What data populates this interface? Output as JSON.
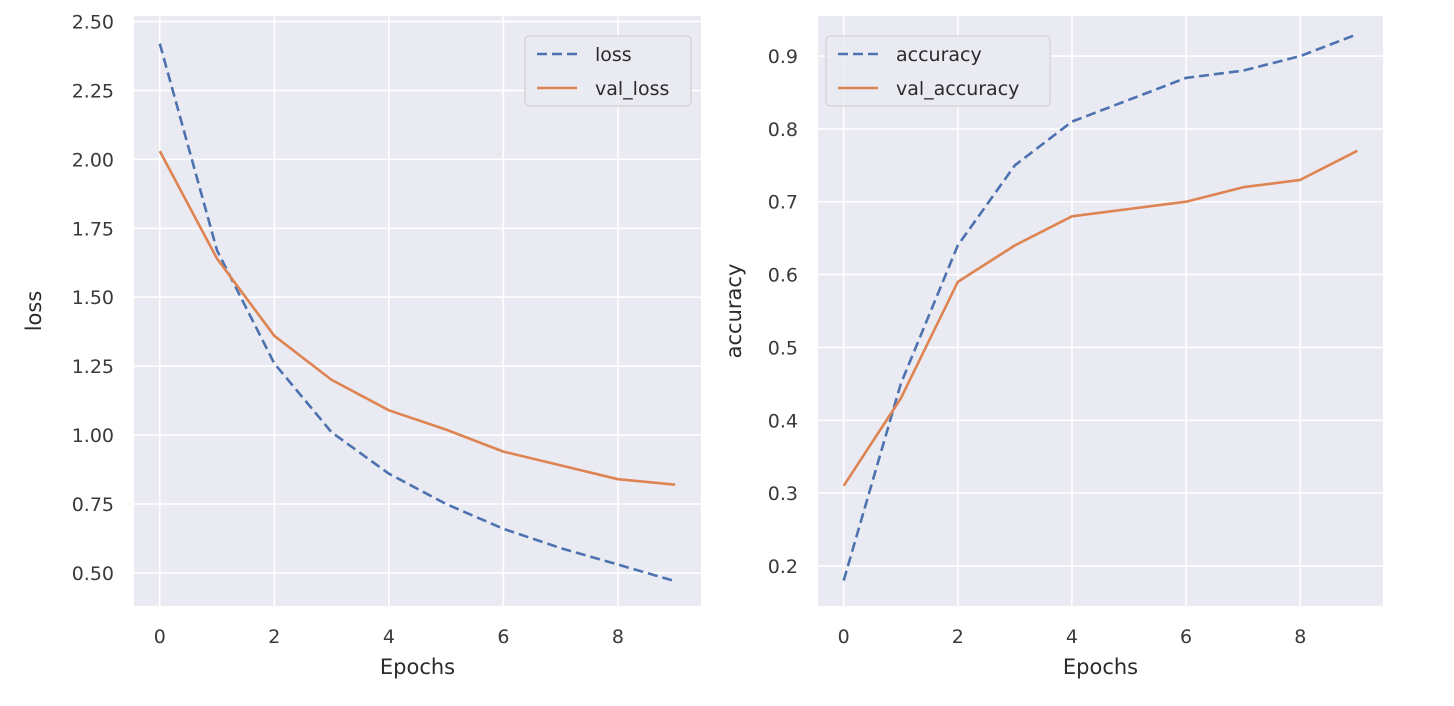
{
  "chart_data": [
    {
      "type": "line",
      "xlabel": "Epochs",
      "ylabel": "loss",
      "xlim": [
        -0.45,
        9.45
      ],
      "ylim": [
        0.38,
        2.52
      ],
      "xticks": [
        0,
        2,
        4,
        6,
        8
      ],
      "xtick_labels": [
        "0",
        "2",
        "4",
        "6",
        "8"
      ],
      "yticks": [
        0.5,
        0.75,
        1.0,
        1.25,
        1.5,
        1.75,
        2.0,
        2.25,
        2.5
      ],
      "ytick_labels": [
        "0.50",
        "0.75",
        "1.00",
        "1.25",
        "1.50",
        "1.75",
        "2.00",
        "2.25",
        "2.50"
      ],
      "grid": true,
      "legend_position": "top-right",
      "x": [
        0,
        1,
        2,
        3,
        4,
        5,
        6,
        7,
        8,
        9
      ],
      "series": [
        {
          "name": "loss",
          "style": "dashed",
          "color": "#4c72b0",
          "values": [
            2.42,
            1.67,
            1.26,
            1.01,
            0.86,
            0.75,
            0.66,
            0.59,
            0.53,
            0.47
          ]
        },
        {
          "name": "val_loss",
          "style": "solid",
          "color": "#dd8452",
          "values": [
            2.03,
            1.64,
            1.36,
            1.2,
            1.09,
            1.02,
            0.94,
            0.89,
            0.84,
            0.82
          ]
        }
      ]
    },
    {
      "type": "line",
      "xlabel": "Epochs",
      "ylabel": "accuracy",
      "xlim": [
        -0.45,
        9.45
      ],
      "ylim": [
        0.145,
        0.955
      ],
      "xticks": [
        0,
        2,
        4,
        6,
        8
      ],
      "xtick_labels": [
        "0",
        "2",
        "4",
        "6",
        "8"
      ],
      "yticks": [
        0.2,
        0.3,
        0.4,
        0.5,
        0.6,
        0.7,
        0.8,
        0.9
      ],
      "ytick_labels": [
        "0.2",
        "0.3",
        "0.4",
        "0.5",
        "0.6",
        "0.7",
        "0.8",
        "0.9"
      ],
      "grid": true,
      "legend_position": "top-left",
      "x": [
        0,
        1,
        2,
        3,
        4,
        5,
        6,
        7,
        8,
        9
      ],
      "series": [
        {
          "name": "accuracy",
          "style": "dashed",
          "color": "#4c72b0",
          "values": [
            0.18,
            0.45,
            0.64,
            0.75,
            0.81,
            0.84,
            0.87,
            0.88,
            0.9,
            0.93
          ]
        },
        {
          "name": "val_accuracy",
          "style": "solid",
          "color": "#dd8452",
          "values": [
            0.31,
            0.43,
            0.59,
            0.64,
            0.68,
            0.69,
            0.7,
            0.72,
            0.73,
            0.77
          ]
        }
      ]
    }
  ],
  "colors": {
    "plot_background": "#eaeaf2",
    "grid": "#ffffff",
    "series_1": "#4c72b0",
    "series_2": "#dd8452"
  }
}
